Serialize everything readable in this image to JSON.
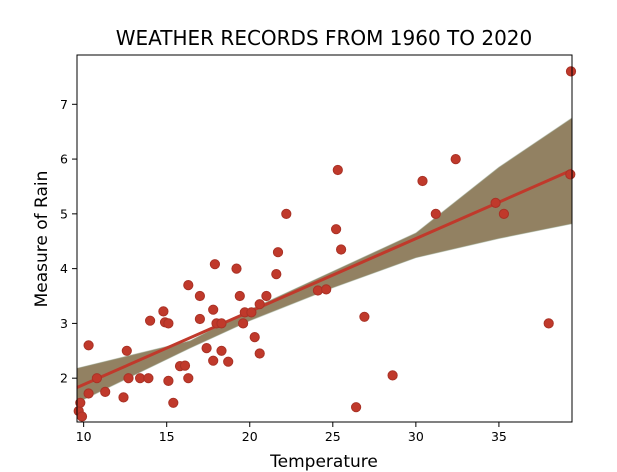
{
  "chart_data": {
    "type": "scatter",
    "title": "WEATHER RECORDS FROM 1960 TO 2020",
    "xlabel": "Temperature",
    "ylabel": "Measure of Rain",
    "xlim": [
      9.6,
      39.4
    ],
    "ylim": [
      1.2,
      7.9
    ],
    "xticks": [
      10,
      15,
      20,
      25,
      30,
      35
    ],
    "yticks": [
      2,
      3,
      4,
      5,
      6,
      7
    ],
    "grid": false,
    "colors": {
      "points": "#c0392b",
      "points_edge": "#a93226",
      "regression_line": "#c0392b",
      "confidence_band": "#8c7a5a"
    },
    "regression": {
      "start": [
        9.6,
        1.83
      ],
      "end": [
        39.4,
        5.8
      ],
      "band_lower": [
        [
          9.6,
          1.55
        ],
        [
          16.4,
          2.55
        ],
        [
          20.0,
          3.05
        ],
        [
          25.0,
          3.65
        ],
        [
          30.0,
          4.2
        ],
        [
          35.0,
          4.55
        ],
        [
          39.4,
          4.82
        ]
      ],
      "band_upper": [
        [
          9.6,
          2.18
        ],
        [
          16.4,
          2.68
        ],
        [
          20.0,
          3.25
        ],
        [
          25.0,
          3.95
        ],
        [
          30.0,
          4.65
        ],
        [
          35.0,
          5.85
        ],
        [
          39.4,
          6.75
        ]
      ]
    },
    "points": [
      [
        9.7,
        1.4
      ],
      [
        9.8,
        1.55
      ],
      [
        9.9,
        1.3
      ],
      [
        10.3,
        2.6
      ],
      [
        10.3,
        1.72
      ],
      [
        10.8,
        2.0
      ],
      [
        11.3,
        1.75
      ],
      [
        12.4,
        1.65
      ],
      [
        12.6,
        2.5
      ],
      [
        12.7,
        2.0
      ],
      [
        13.4,
        2.0
      ],
      [
        13.9,
        2.0
      ],
      [
        14.0,
        3.05
      ],
      [
        14.8,
        3.22
      ],
      [
        14.9,
        3.02
      ],
      [
        15.1,
        1.95
      ],
      [
        15.1,
        3.0
      ],
      [
        15.4,
        1.55
      ],
      [
        15.8,
        2.22
      ],
      [
        16.1,
        2.23
      ],
      [
        16.3,
        2.0
      ],
      [
        16.3,
        3.7
      ],
      [
        17.0,
        3.5
      ],
      [
        17.0,
        3.08
      ],
      [
        17.4,
        2.55
      ],
      [
        17.8,
        3.25
      ],
      [
        17.8,
        2.32
      ],
      [
        17.9,
        4.08
      ],
      [
        18.0,
        3.0
      ],
      [
        18.3,
        3.0
      ],
      [
        18.3,
        2.5
      ],
      [
        18.7,
        2.3
      ],
      [
        19.2,
        4.0
      ],
      [
        19.4,
        3.5
      ],
      [
        19.6,
        3.0
      ],
      [
        19.7,
        3.2
      ],
      [
        20.1,
        3.2
      ],
      [
        20.3,
        2.75
      ],
      [
        20.6,
        3.35
      ],
      [
        20.6,
        2.45
      ],
      [
        21.0,
        3.5
      ],
      [
        21.6,
        3.9
      ],
      [
        21.7,
        4.3
      ],
      [
        22.2,
        5.0
      ],
      [
        24.1,
        3.6
      ],
      [
        24.6,
        3.62
      ],
      [
        25.2,
        4.72
      ],
      [
        25.3,
        5.8
      ],
      [
        25.5,
        4.35
      ],
      [
        26.4,
        1.47
      ],
      [
        26.9,
        3.12
      ],
      [
        28.6,
        2.05
      ],
      [
        30.4,
        5.6
      ],
      [
        31.2,
        5.0
      ],
      [
        32.4,
        6.0
      ],
      [
        34.8,
        5.2
      ],
      [
        35.3,
        5.0
      ],
      [
        38.0,
        3.0
      ],
      [
        39.3,
        5.72
      ],
      [
        39.4,
        7.6
      ]
    ]
  }
}
